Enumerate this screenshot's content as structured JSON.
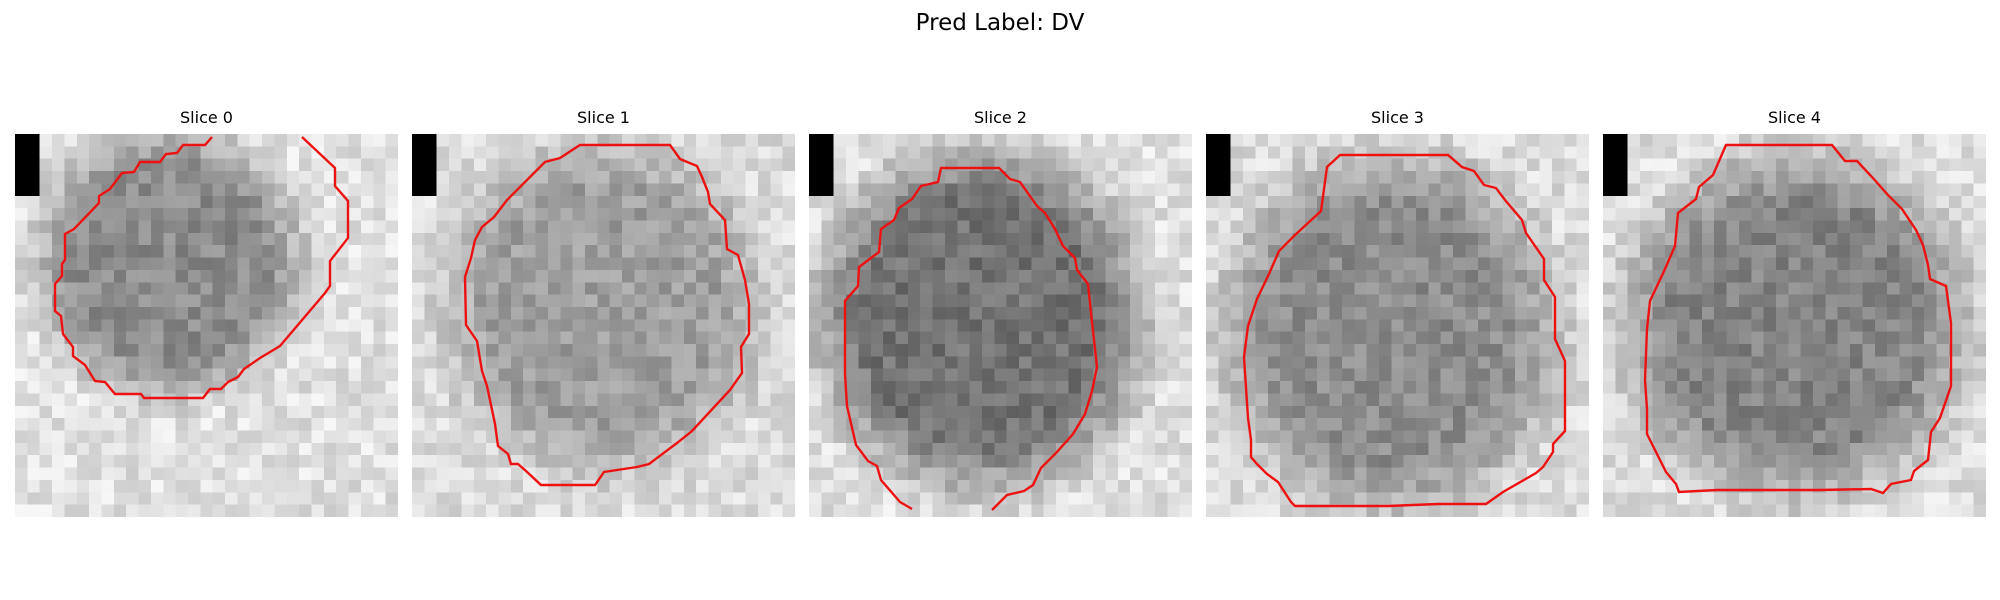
{
  "figure": {
    "title": "Pred Label: DV"
  },
  "colors": {
    "contour": "#ee1111",
    "marker": "#000000",
    "background": "#ffffff"
  },
  "slices": [
    {
      "title": "Slice 0"
    },
    {
      "title": "Slice 1"
    },
    {
      "title": "Slice 2"
    },
    {
      "title": "Slice 3"
    },
    {
      "title": "Slice 4"
    }
  ]
}
